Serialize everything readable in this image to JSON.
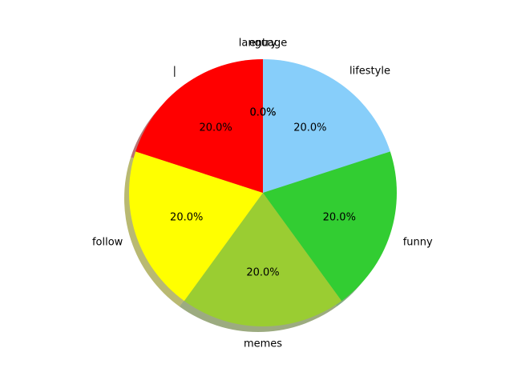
{
  "chart_data": {
    "type": "pie",
    "title": "",
    "shadow": true,
    "start_angle_deg": 90,
    "direction": "clockwise",
    "autopct_format": "0.1f%",
    "slices": [
      {
        "label": "lifestyle",
        "value": 20.0,
        "pct_text": "20.0%",
        "color": "#87CEFA"
      },
      {
        "label": "funny",
        "value": 20.0,
        "pct_text": "20.0%",
        "color": "#32CD32"
      },
      {
        "label": "memes",
        "value": 20.0,
        "pct_text": "20.0%",
        "color": "#9ACD32"
      },
      {
        "label": "follow",
        "value": 20.0,
        "pct_text": "20.0%",
        "color": "#FFFF00"
      },
      {
        "label": "|",
        "value": 20.0,
        "pct_text": "20.0%",
        "color": "#FF0000"
      },
      {
        "label": "entry",
        "value": 0.0,
        "pct_text": "0.0%",
        "color": "#000000"
      },
      {
        "label": "language",
        "value": 0.0,
        "pct_text": "0.0%",
        "color": "#000000"
      }
    ]
  }
}
